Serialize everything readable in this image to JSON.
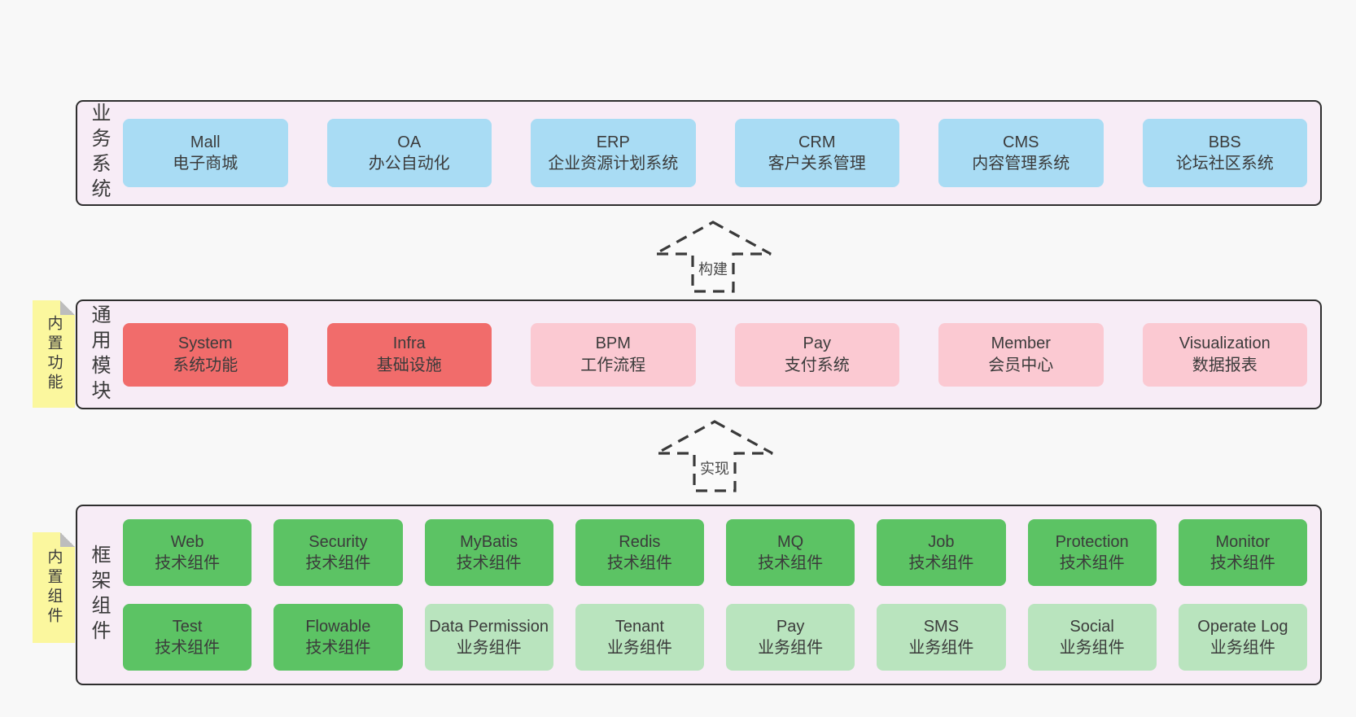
{
  "colors": {
    "blue": "#a9dcf4",
    "red": "#f16c6b",
    "pink": "#fbc9d2",
    "green": "#5cc364",
    "green_light": "#b9e4be",
    "container_bg": "#f7ecf6",
    "container_border": "#2e2e2e",
    "note_bg": "#fbf79e",
    "note_fold": "#bdbdbd",
    "page_bg": "#f8f8f8",
    "arrow_stroke": "#3a3a3a",
    "text": "#3b3b3b"
  },
  "arrows": [
    {
      "label": "构建"
    },
    {
      "label": "实现"
    }
  ],
  "layers": [
    {
      "label": "业务系统",
      "rows": [
        [
          {
            "name": "Mall",
            "desc": "电子商城",
            "variant": "blue"
          },
          {
            "name": "OA",
            "desc": "办公自动化",
            "variant": "blue"
          },
          {
            "name": "ERP",
            "desc": "企业资源计划系统",
            "variant": "blue"
          },
          {
            "name": "CRM",
            "desc": "客户关系管理",
            "variant": "blue"
          },
          {
            "name": "CMS",
            "desc": "内容管理系统",
            "variant": "blue"
          },
          {
            "name": "BBS",
            "desc": "论坛社区系统",
            "variant": "blue"
          }
        ]
      ]
    },
    {
      "label": "通用模块",
      "note": "内置功能",
      "rows": [
        [
          {
            "name": "System",
            "desc": "系统功能",
            "variant": "red"
          },
          {
            "name": "Infra",
            "desc": "基础设施",
            "variant": "red"
          },
          {
            "name": "BPM",
            "desc": "工作流程",
            "variant": "pink"
          },
          {
            "name": "Pay",
            "desc": "支付系统",
            "variant": "pink"
          },
          {
            "name": "Member",
            "desc": "会员中心",
            "variant": "pink"
          },
          {
            "name": "Visualization",
            "desc": "数据报表",
            "variant": "pink"
          }
        ]
      ]
    },
    {
      "label": "框架组件",
      "note": "内置组件",
      "rows": [
        [
          {
            "name": "Web",
            "desc": "技术组件",
            "variant": "green"
          },
          {
            "name": "Security",
            "desc": "技术组件",
            "variant": "green"
          },
          {
            "name": "MyBatis",
            "desc": "技术组件",
            "variant": "green"
          },
          {
            "name": "Redis",
            "desc": "技术组件",
            "variant": "green"
          },
          {
            "name": "MQ",
            "desc": "技术组件",
            "variant": "green"
          },
          {
            "name": "Job",
            "desc": "技术组件",
            "variant": "green"
          },
          {
            "name": "Protection",
            "desc": "技术组件",
            "variant": "green"
          },
          {
            "name": "Monitor",
            "desc": "技术组件",
            "variant": "green"
          }
        ],
        [
          {
            "name": "Test",
            "desc": "技术组件",
            "variant": "green"
          },
          {
            "name": "Flowable",
            "desc": "技术组件",
            "variant": "green"
          },
          {
            "name": "Data Permission",
            "desc": "业务组件",
            "variant": "green_light"
          },
          {
            "name": "Tenant",
            "desc": "业务组件",
            "variant": "green_light"
          },
          {
            "name": "Pay",
            "desc": "业务组件",
            "variant": "green_light"
          },
          {
            "name": "SMS",
            "desc": "业务组件",
            "variant": "green_light"
          },
          {
            "name": "Social",
            "desc": "业务组件",
            "variant": "green_light"
          },
          {
            "name": "Operate Log",
            "desc": "业务组件",
            "variant": "green_light"
          }
        ]
      ]
    }
  ]
}
